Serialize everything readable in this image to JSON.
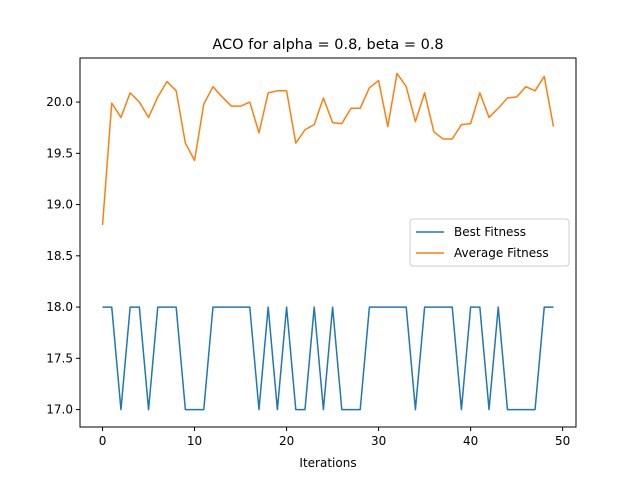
{
  "chart_data": {
    "type": "line",
    "title": "ACO for alpha = 0.8, beta = 0.8",
    "xlabel": "Iterations",
    "ylabel": "",
    "xlim": [
      -2.45,
      51.45
    ],
    "ylim": [
      16.83,
      20.43
    ],
    "x_ticks": [
      0,
      10,
      20,
      30,
      40,
      50
    ],
    "y_ticks": [
      17.0,
      17.5,
      18.0,
      18.5,
      19.0,
      19.5,
      20.0
    ],
    "grid": false,
    "legend_position": "center-right",
    "x": [
      0,
      1,
      2,
      3,
      4,
      5,
      6,
      7,
      8,
      9,
      10,
      11,
      12,
      13,
      14,
      15,
      16,
      17,
      18,
      19,
      20,
      21,
      22,
      23,
      24,
      25,
      26,
      27,
      28,
      29,
      30,
      31,
      32,
      33,
      34,
      35,
      36,
      37,
      38,
      39,
      40,
      41,
      42,
      43,
      44,
      45,
      46,
      47,
      48,
      49
    ],
    "series": [
      {
        "name": "Best Fitness",
        "color": "#1f77b4",
        "values": [
          18,
          18,
          17,
          18,
          18,
          17,
          18,
          18,
          18,
          17,
          17,
          17,
          18,
          18,
          18,
          18,
          18,
          17,
          18,
          17,
          18,
          17,
          17,
          18,
          17,
          18,
          17,
          17,
          17,
          18,
          18,
          18,
          18,
          18,
          17,
          18,
          18,
          18,
          18,
          17,
          18,
          18,
          17,
          18,
          17,
          17,
          17,
          17,
          18,
          18
        ]
      },
      {
        "name": "Average Fitness",
        "color": "#ff7f0e",
        "values": [
          18.8,
          19.99,
          19.85,
          20.09,
          20.0,
          19.85,
          20.05,
          20.2,
          20.11,
          19.6,
          19.43,
          19.98,
          20.15,
          20.05,
          19.96,
          19.96,
          20.0,
          19.7,
          20.09,
          20.11,
          20.11,
          19.6,
          19.73,
          19.78,
          20.04,
          19.8,
          19.79,
          19.94,
          19.94,
          20.14,
          20.21,
          19.76,
          20.28,
          20.15,
          19.81,
          20.09,
          19.71,
          19.64,
          19.64,
          19.78,
          19.79,
          20.09,
          19.85,
          19.94,
          20.04,
          20.05,
          20.15,
          20.11,
          20.25,
          19.76
        ]
      }
    ]
  }
}
